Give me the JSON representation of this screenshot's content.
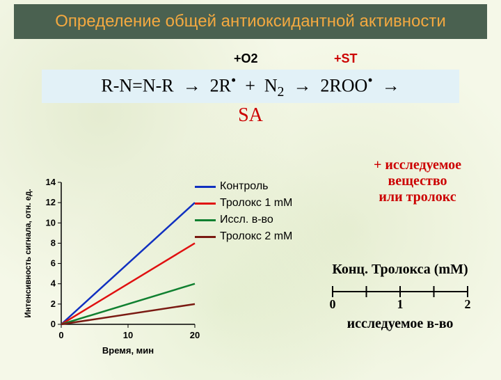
{
  "title": "Определение общей антиоксидантной активности",
  "reaction": {
    "annot_o2_label": "+O",
    "annot_o2_sub": "2",
    "annot_st": "+ST",
    "sa": "SA"
  },
  "sample_note": {
    "l1": "+ исследуемое",
    "l2": "вещество",
    "l3": "или тролокс"
  },
  "chart": {
    "type": "line",
    "x_label": "Время, мин",
    "y_label": "Интенсивность сигнала, отн. ед.",
    "label_fontsize": 13,
    "x_ticks": [
      0,
      10,
      20
    ],
    "y_ticks": [
      0,
      2,
      4,
      6,
      8,
      10,
      12,
      14
    ],
    "xlim": [
      0,
      20
    ],
    "ylim": [
      0,
      14
    ],
    "axis_color": "#000000",
    "tick_font_size": 13,
    "line_width": 2.5,
    "background_color": "transparent",
    "series": [
      {
        "name": "Контроль",
        "color": "#1030c0",
        "x": [
          0,
          20
        ],
        "y": [
          0,
          12
        ]
      },
      {
        "name": "Тролокс 1 mM",
        "color": "#e01010",
        "x": [
          0,
          20
        ],
        "y": [
          0,
          8
        ]
      },
      {
        "name": "Иссл. в-во",
        "color": "#108030",
        "x": [
          0,
          20
        ],
        "y": [
          0,
          4
        ]
      },
      {
        "name": "Тролокс 2 mM",
        "color": "#7a1a12",
        "x": [
          0,
          20
        ],
        "y": [
          0,
          2
        ]
      }
    ]
  },
  "legend": {
    "items": [
      "Контроль",
      "Тролокс 1 mM",
      "Иссл. в-во",
      "Тролокс 2 mM"
    ],
    "colors": [
      "#1030c0",
      "#e01010",
      "#108030",
      "#7a1a12"
    ]
  },
  "conc_scale": {
    "title": "Конц. Тролокса (mM)",
    "ticks": [
      0,
      1,
      2
    ],
    "bottom_label": "исследуемое в-во",
    "axis_color": "#000000",
    "font_size": 20
  }
}
